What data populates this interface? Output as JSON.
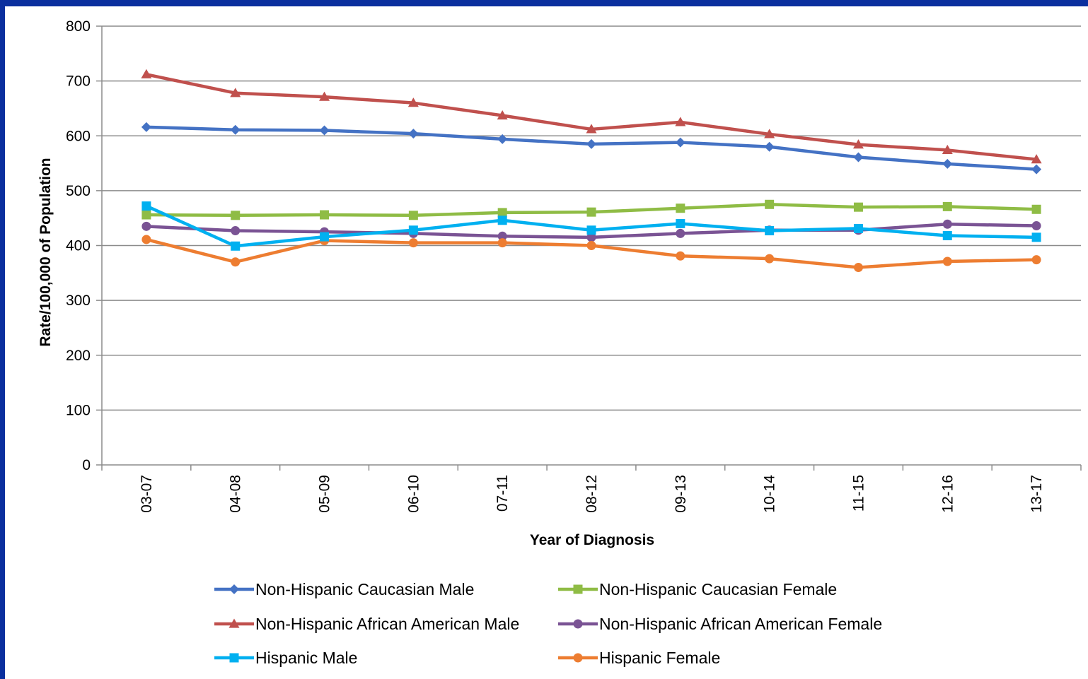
{
  "chart_data": {
    "type": "line",
    "title": "",
    "xlabel": "Year of Diagnosis",
    "ylabel": "Rate/100,000 of Population",
    "ylim": [
      0,
      800
    ],
    "yticks": [
      0,
      100,
      200,
      300,
      400,
      500,
      600,
      700,
      800
    ],
    "grid": true,
    "legend_position": "bottom",
    "categories": [
      "03-07",
      "04-08",
      "05-09",
      "06-10",
      "07-11",
      "08-12",
      "09-13",
      "10-14",
      "11-15",
      "12-16",
      "13-17"
    ],
    "series": [
      {
        "name": "Non-Hispanic Caucasian Male",
        "color": "#4472c4",
        "marker": "diamond",
        "values": [
          616,
          611,
          610,
          604,
          594,
          585,
          588,
          580,
          561,
          549,
          539
        ]
      },
      {
        "name": "Non-Hispanic Caucasian Female",
        "color": "#8fbc45",
        "marker": "square",
        "values": [
          456,
          455,
          456,
          455,
          460,
          461,
          468,
          475,
          470,
          471,
          466
        ]
      },
      {
        "name": "Non-Hispanic African American Male",
        "color": "#c0504d",
        "marker": "triangle",
        "values": [
          712,
          678,
          671,
          660,
          637,
          612,
          625,
          603,
          584,
          574,
          557
        ]
      },
      {
        "name": "Non-Hispanic African American Female",
        "color": "#7a5394",
        "marker": "circle",
        "values": [
          435,
          427,
          425,
          422,
          417,
          415,
          422,
          428,
          428,
          439,
          436
        ]
      },
      {
        "name": "Hispanic Male",
        "color": "#00b0f0",
        "marker": "square",
        "values": [
          472,
          399,
          416,
          428,
          446,
          428,
          440,
          427,
          431,
          418,
          415
        ]
      },
      {
        "name": "Hispanic Female",
        "color": "#ed7d31",
        "marker": "circle",
        "values": [
          411,
          370,
          409,
          405,
          405,
          400,
          381,
          376,
          360,
          371,
          374
        ]
      }
    ]
  }
}
